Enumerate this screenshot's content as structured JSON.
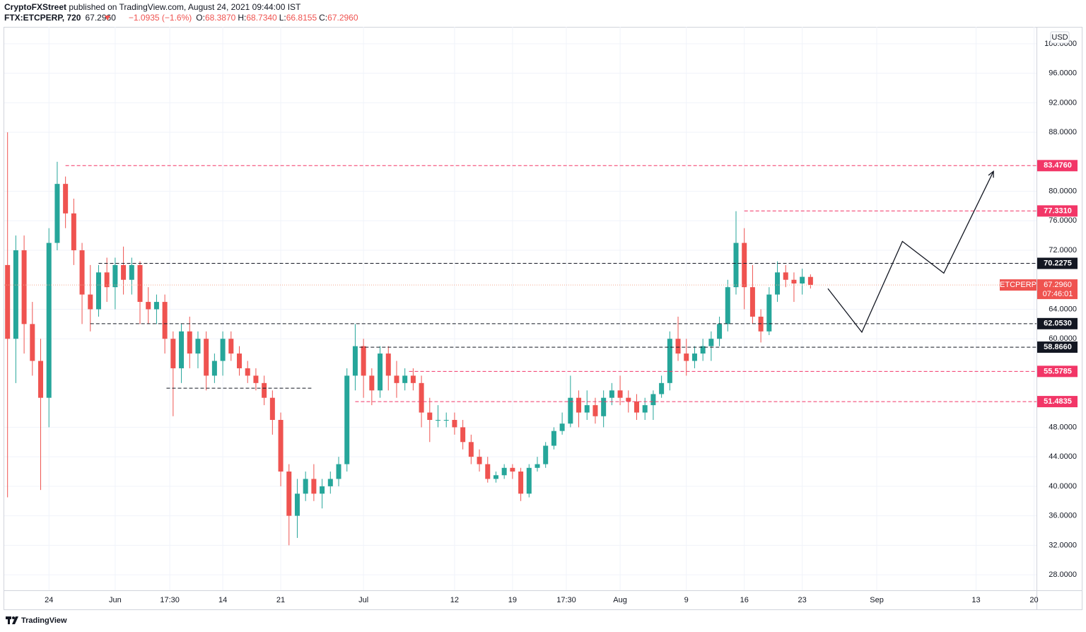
{
  "header": {
    "publisher": "CryptoFXStreet",
    "published": "published on TradingView.com, August 24, 2021 09:44:00 IST",
    "symbol": "FTX:ETCPERP, 720",
    "last": "67.2960",
    "change": "−1.0935 (−1.6%)",
    "o_label": "O:",
    "o": "68.3870",
    "h_label": "H:",
    "h": "68.7340",
    "l_label": "L:",
    "l": "66.8155",
    "c_label": "C:",
    "c": "67.2960"
  },
  "footer": {
    "brand": "TradingView"
  },
  "chart_data": {
    "type": "candlestick",
    "currency": "USD",
    "up_color": "#26a69a",
    "down_color": "#ef5350",
    "grid": true,
    "xlim": [
      -0.4,
      124.3
    ],
    "ylim": [
      25.9,
      102.1
    ],
    "xticks": [
      {
        "value": 5,
        "label": "24"
      },
      {
        "value": 13,
        "label": "Jun"
      },
      {
        "value": 19.6,
        "label": "17:30"
      },
      {
        "value": 26,
        "label": "14"
      },
      {
        "value": 33,
        "label": "21"
      },
      {
        "value": 43,
        "label": "Jul"
      },
      {
        "value": 54,
        "label": "12"
      },
      {
        "value": 61,
        "label": "19"
      },
      {
        "value": 67.5,
        "label": "17:30"
      },
      {
        "value": 74,
        "label": "Aug"
      },
      {
        "value": 82,
        "label": "9"
      },
      {
        "value": 89,
        "label": "16"
      },
      {
        "value": 96,
        "label": "23"
      },
      {
        "value": 105,
        "label": "Sep"
      },
      {
        "value": 117,
        "label": "13"
      },
      {
        "value": 124,
        "label": "20"
      }
    ],
    "yticks": [
      {
        "value": 28,
        "label": "28.0000"
      },
      {
        "value": 32,
        "label": "32.0000"
      },
      {
        "value": 36,
        "label": "36.0000"
      },
      {
        "value": 40,
        "label": "40.0000"
      },
      {
        "value": 44,
        "label": "44.0000"
      },
      {
        "value": 48,
        "label": "48.0000"
      },
      {
        "value": 60,
        "label": "60.0000"
      },
      {
        "value": 64,
        "label": "64.0000"
      },
      {
        "value": 72,
        "label": "72.0000"
      },
      {
        "value": 76,
        "label": "76.0000"
      },
      {
        "value": 80,
        "label": "80.0000"
      },
      {
        "value": 88,
        "label": "88.0000"
      },
      {
        "value": 92,
        "label": "92.0000"
      },
      {
        "value": 96,
        "label": "96.0000"
      },
      {
        "value": 100,
        "label": "100.0000"
      }
    ],
    "ohlc": [
      [
        70,
        88,
        38.5,
        60
      ],
      [
        60,
        74,
        54,
        72
      ],
      [
        72,
        74,
        58,
        62
      ],
      [
        62,
        65,
        55,
        57
      ],
      [
        57,
        60,
        39.5,
        52
      ],
      [
        52,
        75,
        48,
        73
      ],
      [
        73,
        84,
        72,
        81
      ],
      [
        81,
        82,
        75,
        77
      ],
      [
        77,
        79,
        70,
        72
      ],
      [
        72,
        73,
        62,
        66
      ],
      [
        66,
        70,
        61,
        64
      ],
      [
        64,
        70,
        63,
        69
      ],
      [
        69,
        71,
        65,
        67
      ],
      [
        67,
        71,
        64,
        70
      ],
      [
        70,
        72.5,
        66,
        68
      ],
      [
        68,
        71,
        66,
        70
      ],
      [
        70,
        70.5,
        62,
        65
      ],
      [
        65,
        67,
        62,
        64
      ],
      [
        64,
        66,
        62,
        65
      ],
      [
        65,
        66,
        58,
        60
      ],
      [
        60,
        61,
        49.5,
        56
      ],
      [
        56,
        62,
        54,
        61
      ],
      [
        61,
        63,
        56,
        58
      ],
      [
        58,
        61,
        56,
        60
      ],
      [
        60,
        61,
        53,
        55
      ],
      [
        55,
        58,
        54,
        57
      ],
      [
        57,
        61,
        55,
        60
      ],
      [
        60,
        61,
        57,
        58
      ],
      [
        58,
        59,
        55,
        56
      ],
      [
        56,
        57,
        54,
        55
      ],
      [
        55,
        56,
        53,
        54
      ],
      [
        54,
        55,
        51,
        52
      ],
      [
        52,
        53,
        47,
        49
      ],
      [
        49,
        50,
        40,
        42
      ],
      [
        42,
        43,
        32,
        36
      ],
      [
        36,
        41,
        33,
        39
      ],
      [
        39,
        42,
        38,
        41
      ],
      [
        41,
        43,
        38,
        39
      ],
      [
        39,
        41,
        37,
        40
      ],
      [
        40,
        42,
        39,
        41
      ],
      [
        41,
        44,
        40,
        43
      ],
      [
        43,
        56,
        42,
        55
      ],
      [
        55,
        62,
        53,
        59
      ],
      [
        59,
        60,
        52,
        55
      ],
      [
        55,
        56,
        51,
        53
      ],
      [
        53,
        59,
        52,
        58
      ],
      [
        58,
        59,
        53,
        55
      ],
      [
        55,
        57,
        52,
        54
      ],
      [
        54,
        56,
        53,
        55
      ],
      [
        55,
        56,
        53,
        54
      ],
      [
        54,
        55,
        48,
        50
      ],
      [
        50,
        52,
        46,
        49
      ],
      [
        49,
        51,
        48,
        49
      ],
      [
        49,
        50,
        48,
        49
      ],
      [
        49,
        50,
        47,
        48
      ],
      [
        48,
        49,
        45,
        46
      ],
      [
        46,
        47,
        43,
        44
      ],
      [
        44,
        45,
        42,
        43
      ],
      [
        43,
        44,
        40.5,
        41
      ],
      [
        41,
        42,
        40.5,
        41.5
      ],
      [
        41.5,
        43,
        41,
        42.5
      ],
      [
        42.5,
        43,
        41,
        42
      ],
      [
        42,
        42.5,
        38,
        39
      ],
      [
        39,
        43,
        38.5,
        42.5
      ],
      [
        42.5,
        44,
        42,
        43
      ],
      [
        43,
        46,
        42.5,
        45.5
      ],
      [
        45.5,
        48,
        45,
        47.5
      ],
      [
        47.5,
        50,
        47,
        48.5
      ],
      [
        48.5,
        55,
        48,
        52
      ],
      [
        52,
        53,
        48,
        50
      ],
      [
        50,
        53,
        49,
        51
      ],
      [
        51,
        52,
        48.5,
        49.5
      ],
      [
        49.5,
        53,
        48,
        52
      ],
      [
        52,
        54,
        51,
        53
      ],
      [
        53,
        55,
        51,
        52
      ],
      [
        52,
        53,
        50,
        51.5
      ],
      [
        51.5,
        52.5,
        49,
        50
      ],
      [
        50,
        52,
        49,
        51
      ],
      [
        51,
        53,
        49,
        52.5
      ],
      [
        52.5,
        55,
        52,
        54
      ],
      [
        54,
        61,
        53,
        60
      ],
      [
        60,
        63,
        57,
        58
      ],
      [
        58,
        60,
        55,
        57
      ],
      [
        57,
        59,
        56,
        58
      ],
      [
        58,
        60,
        57,
        59
      ],
      [
        59,
        61,
        57,
        60
      ],
      [
        60,
        63,
        59,
        62
      ],
      [
        62,
        68,
        61,
        67
      ],
      [
        67,
        77.3,
        66,
        73
      ],
      [
        73,
        75,
        64,
        67
      ],
      [
        67,
        70,
        62,
        63
      ],
      [
        63,
        64,
        59.5,
        61
      ],
      [
        61,
        67,
        60.5,
        66
      ],
      [
        66,
        70.5,
        65,
        69
      ],
      [
        69,
        70,
        67,
        68
      ],
      [
        68,
        69,
        65,
        67.5
      ],
      [
        67.5,
        69.5,
        66,
        68.4
      ],
      [
        68.387,
        68.734,
        66.8155,
        67.296
      ]
    ],
    "levels": [
      {
        "value": 83.476,
        "label": "83.4760",
        "color": "#f23667",
        "start": 7
      },
      {
        "value": 77.331,
        "label": "77.3310",
        "color": "#f23667",
        "start": 89
      },
      {
        "value": 70.2275,
        "label": "70.2275",
        "color": "#131722",
        "start": 11
      },
      {
        "value": 62.053,
        "label": "62.0530",
        "color": "#131722",
        "start": 10
      },
      {
        "value": 58.866,
        "label": "58.8660",
        "color": "#131722",
        "start": 42.5
      },
      {
        "value": 55.5785,
        "label": "55.5785",
        "color": "#f23667",
        "start": 48.5
      },
      {
        "value": 51.4835,
        "label": "51.4835",
        "color": "#f23667",
        "start": 42
      }
    ],
    "support_segment": {
      "value": 53.3,
      "start": 19.2,
      "end": 36.7,
      "color": "#131722"
    },
    "price": {
      "value": 67.296,
      "label": "67.2960",
      "symbol": "ETCPERP",
      "countdown": "07:46:01",
      "color": "#ef5350"
    },
    "projection": {
      "x": [
        99.1,
        103.2,
        108.1,
        113.1,
        119.1
      ],
      "y": [
        66.8,
        60.9,
        73.2,
        68.9,
        82.7
      ],
      "color": "#131722"
    }
  }
}
